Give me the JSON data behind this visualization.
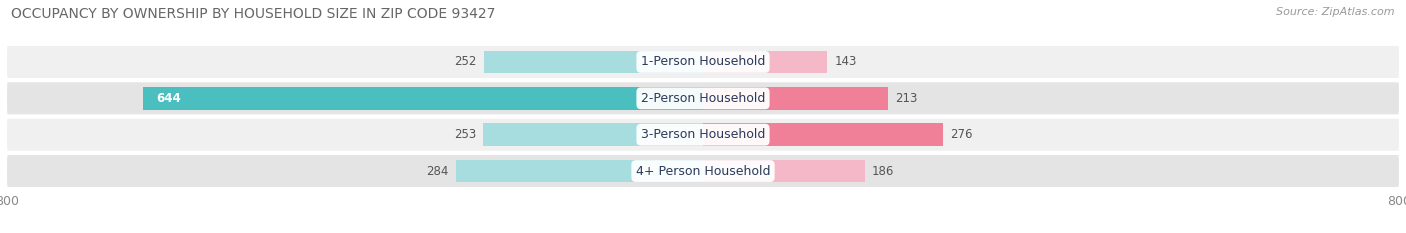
{
  "title": "OCCUPANCY BY OWNERSHIP BY HOUSEHOLD SIZE IN ZIP CODE 93427",
  "source": "Source: ZipAtlas.com",
  "categories": [
    "1-Person Household",
    "2-Person Household",
    "3-Person Household",
    "4+ Person Household"
  ],
  "owner_values": [
    252,
    644,
    253,
    284
  ],
  "renter_values": [
    143,
    213,
    276,
    186
  ],
  "owner_color": "#4bbfbf",
  "renter_color": "#f08098",
  "owner_color_light": "#a8dde0",
  "renter_color_light": "#f4b8c8",
  "axis_min": -800,
  "axis_max": 800,
  "title_fontsize": 10,
  "source_fontsize": 8,
  "tick_fontsize": 9,
  "bar_label_fontsize": 8.5,
  "category_fontsize": 9,
  "legend_fontsize": 9,
  "background_color": "#ffffff",
  "row_bg_color_odd": "#f5f5f5",
  "row_bg_color_even": "#ebebeb",
  "row_bg_color_2": "#d8d8d8"
}
